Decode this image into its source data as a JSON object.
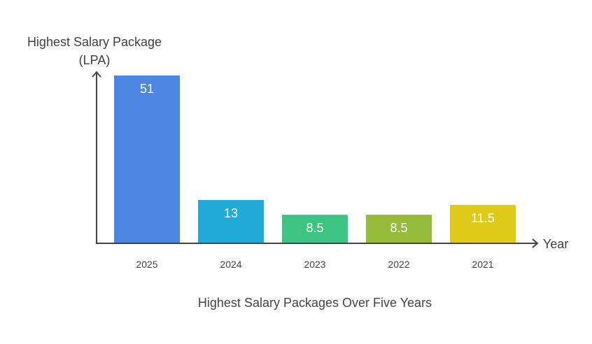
{
  "chart_data": {
    "type": "bar",
    "title": "Highest Salary Packages Over Five Years",
    "ylabel_lines": [
      "Highest Salary Package",
      "(LPA)"
    ],
    "xlabel": "Year",
    "categories": [
      "2025",
      "2024",
      "2023",
      "2022",
      "2021"
    ],
    "values": [
      51,
      13,
      8.5,
      8.5,
      11.5
    ],
    "value_labels": [
      "51",
      "13",
      "8.5",
      "8.5",
      "11.5"
    ],
    "colors": [
      "#4E86E4",
      "#21AAD8",
      "#3DC482",
      "#95BB3A",
      "#DFCB17"
    ],
    "ylim": [
      0,
      51
    ],
    "grid": false,
    "legend": "none"
  }
}
